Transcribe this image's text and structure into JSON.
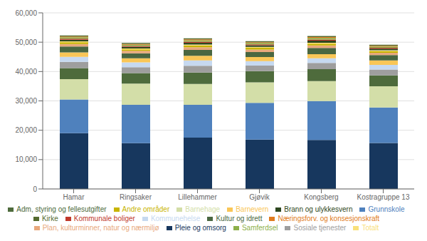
{
  "chart_data": {
    "type": "bar",
    "stacked": true,
    "grid": true,
    "legend": "bottom",
    "categories": [
      "Hamar",
      "Ringsaker",
      "Lillehammer",
      "Gjøvik",
      "Kongsberg",
      "Kostragruppe 13"
    ],
    "series": [
      {
        "name": "Pleie og omsorg",
        "color": "#17375e",
        "values": [
          18994,
          15589,
          17472,
          16837,
          16716,
          15677
        ]
      },
      {
        "name": "Grunnskole",
        "color": "#4f81bd",
        "values": [
          11500,
          13100,
          11200,
          12500,
          13200,
          12100
        ]
      },
      {
        "name": "Barnehage",
        "color": "#d3dea8",
        "values": [
          6900,
          7200,
          7100,
          7000,
          6800,
          7200
        ]
      },
      {
        "name": "Adm, styring og fellesutgifter",
        "color": "#4e6b3c",
        "values": [
          3800,
          3600,
          3900,
          3800,
          4100,
          3700
        ]
      },
      {
        "name": "Sosiale tjenester",
        "color": "#9e9e9e",
        "values": [
          2100,
          2000,
          2300,
          1900,
          2100,
          2000
        ]
      },
      {
        "name": "Kommunehelse",
        "color": "#c6d9f0",
        "values": [
          1700,
          1600,
          1800,
          1500,
          1600,
          1600
        ]
      },
      {
        "name": "Barnevern",
        "color": "#f9c657",
        "values": [
          1500,
          1400,
          1600,
          1400,
          1400,
          1500
        ]
      },
      {
        "name": "Kultur og idrett",
        "color": "#4a6741",
        "values": [
          2000,
          1700,
          2000,
          1700,
          2100,
          1800
        ]
      },
      {
        "name": "Plan, kulturminner, natur og nærmiljø",
        "color": "#e8a87c",
        "values": [
          900,
          850,
          900,
          850,
          900,
          850
        ]
      },
      {
        "name": "Andre områder",
        "color": "#c8b400",
        "values": [
          600,
          500,
          600,
          600,
          600,
          500
        ]
      },
      {
        "name": "Totalt",
        "color": "#f9e07a",
        "values": [
          300,
          300,
          300,
          300,
          300,
          300
        ]
      },
      {
        "name": "Brann og ulykkesvern",
        "color": "#2e4820",
        "values": [
          550,
          550,
          600,
          550,
          700,
          550
        ]
      },
      {
        "name": "Kommunale boliger",
        "color": "#c0392b",
        "values": [
          350,
          300,
          380,
          300,
          400,
          300
        ]
      },
      {
        "name": "Samferdsel",
        "color": "#8db04a",
        "values": [
          500,
          450,
          500,
          480,
          500,
          450
        ]
      },
      {
        "name": "Næringsforv. og konsesjonskraft",
        "color": "#e07b20",
        "values": [
          250,
          250,
          280,
          250,
          300,
          250
        ]
      },
      {
        "name": "Kirke",
        "color": "#556b2f",
        "values": [
          350,
          350,
          380,
          350,
          380,
          350
        ]
      }
    ],
    "ylim": [
      0,
      60000
    ],
    "yticks": [
      0,
      {
        "value": 10000,
        "label": "10,000"
      },
      {
        "value": 20000,
        "label": "20,000"
      },
      {
        "value": 30000,
        "label": "30,000"
      },
      {
        "value": 40000,
        "label": "40,000"
      },
      {
        "value": 50000,
        "label": "50,000"
      },
      {
        "value": 60000,
        "label": "60,000"
      }
    ]
  }
}
